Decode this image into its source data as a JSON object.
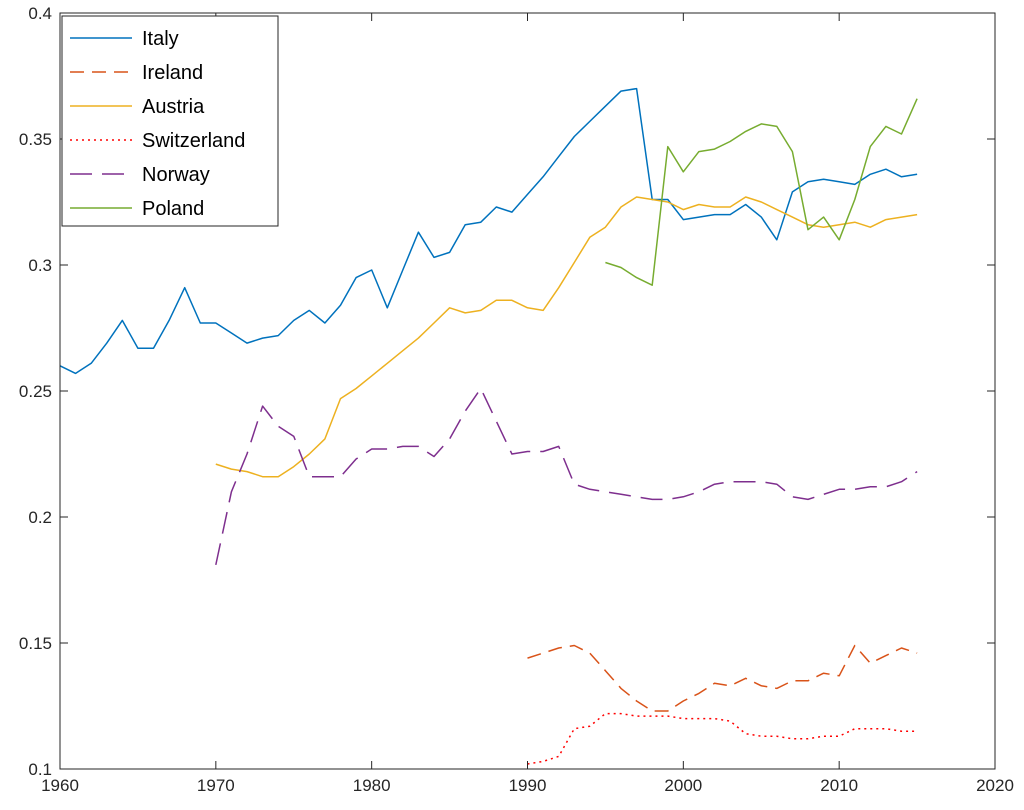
{
  "chart_data": {
    "type": "line",
    "title": "",
    "xlabel": "",
    "ylabel": "",
    "xlim": [
      1960,
      2020
    ],
    "ylim": [
      0.1,
      0.4
    ],
    "x_ticks": [
      "1960",
      "1970",
      "1980",
      "1990",
      "2000",
      "2010",
      "2020"
    ],
    "y_ticks": [
      "0.1",
      "0.15",
      "0.2",
      "0.25",
      "0.3",
      "0.35",
      "0.4"
    ],
    "grid": false,
    "legend_position": "top-left",
    "series": [
      {
        "name": "Italy",
        "color": "#0072BD",
        "style": "solid",
        "x": [
          1960,
          1961,
          1962,
          1963,
          1964,
          1965,
          1966,
          1967,
          1968,
          1969,
          1970,
          1971,
          1972,
          1973,
          1974,
          1975,
          1976,
          1977,
          1978,
          1979,
          1980,
          1981,
          1982,
          1983,
          1984,
          1985,
          1986,
          1987,
          1988,
          1989,
          1990,
          1991,
          1992,
          1993,
          1994,
          1995,
          1996,
          1997,
          1998,
          1999,
          2000,
          2001,
          2002,
          2003,
          2004,
          2005,
          2006,
          2007,
          2008,
          2009,
          2010,
          2011,
          2012,
          2013,
          2014,
          2015
        ],
        "y": [
          0.26,
          0.257,
          0.261,
          0.269,
          0.278,
          0.267,
          0.267,
          0.278,
          0.291,
          0.277,
          0.277,
          0.273,
          0.269,
          0.271,
          0.272,
          0.278,
          0.282,
          0.277,
          0.284,
          0.295,
          0.298,
          0.283,
          0.298,
          0.313,
          0.303,
          0.305,
          0.316,
          0.317,
          0.323,
          0.321,
          0.328,
          0.335,
          0.343,
          0.351,
          0.357,
          0.363,
          0.369,
          0.37,
          0.326,
          0.326,
          0.318,
          0.319,
          0.32,
          0.32,
          0.324,
          0.319,
          0.31,
          0.329,
          0.333,
          0.334,
          0.333,
          0.332,
          0.336,
          0.338,
          0.335,
          0.336
        ]
      },
      {
        "name": "Ireland",
        "color": "#D95319",
        "style": "dashed",
        "x": [
          1990,
          1991,
          1992,
          1993,
          1994,
          1995,
          1996,
          1997,
          1998,
          1999,
          2000,
          2001,
          2002,
          2003,
          2004,
          2005,
          2006,
          2007,
          2008,
          2009,
          2010,
          2011,
          2012,
          2013,
          2014,
          2015
        ],
        "y": [
          0.144,
          0.146,
          0.148,
          0.149,
          0.146,
          0.139,
          0.132,
          0.127,
          0.123,
          0.123,
          0.127,
          0.13,
          0.134,
          0.133,
          0.136,
          0.133,
          0.132,
          0.135,
          0.135,
          0.138,
          0.137,
          0.149,
          0.142,
          0.145,
          0.148,
          0.146
        ]
      },
      {
        "name": "Austria",
        "color": "#EDB120",
        "style": "solid",
        "x": [
          1970,
          1971,
          1972,
          1973,
          1974,
          1975,
          1976,
          1977,
          1978,
          1979,
          1980,
          1981,
          1982,
          1983,
          1984,
          1985,
          1986,
          1987,
          1988,
          1989,
          1990,
          1991,
          1992,
          1993,
          1994,
          1995,
          1996,
          1997,
          1998,
          1999,
          2000,
          2001,
          2002,
          2003,
          2004,
          2005,
          2006,
          2007,
          2008,
          2009,
          2010,
          2011,
          2012,
          2013,
          2014,
          2015
        ],
        "y": [
          0.221,
          0.219,
          0.218,
          0.216,
          0.216,
          0.22,
          0.225,
          0.231,
          0.247,
          0.251,
          0.256,
          0.261,
          0.266,
          0.271,
          0.277,
          0.283,
          0.281,
          0.282,
          0.286,
          0.286,
          0.283,
          0.282,
          0.291,
          0.301,
          0.311,
          0.315,
          0.323,
          0.327,
          0.326,
          0.325,
          0.322,
          0.324,
          0.323,
          0.323,
          0.327,
          0.325,
          0.322,
          0.319,
          0.316,
          0.315,
          0.316,
          0.317,
          0.315,
          0.318,
          0.319,
          0.32
        ]
      },
      {
        "name": "Switzerland",
        "color": "#FF0000",
        "style": "dotted",
        "x": [
          1990,
          1991,
          1992,
          1993,
          1994,
          1995,
          1996,
          1997,
          1998,
          1999,
          2000,
          2001,
          2002,
          2003,
          2004,
          2005,
          2006,
          2007,
          2008,
          2009,
          2010,
          2011,
          2012,
          2013,
          2014,
          2015
        ],
        "y": [
          0.102,
          0.103,
          0.105,
          0.116,
          0.117,
          0.122,
          0.122,
          0.121,
          0.121,
          0.121,
          0.12,
          0.12,
          0.12,
          0.119,
          0.114,
          0.113,
          0.113,
          0.112,
          0.112,
          0.113,
          0.113,
          0.116,
          0.116,
          0.116,
          0.115,
          0.115
        ]
      },
      {
        "name": "Norway",
        "color": "#7E2F8E",
        "style": "longdash",
        "x": [
          1970,
          1971,
          1972,
          1973,
          1974,
          1975,
          1976,
          1977,
          1978,
          1979,
          1980,
          1981,
          1982,
          1983,
          1984,
          1985,
          1986,
          1987,
          1988,
          1989,
          1990,
          1991,
          1992,
          1993,
          1994,
          1995,
          1996,
          1997,
          1998,
          1999,
          2000,
          2001,
          2002,
          2003,
          2004,
          2005,
          2006,
          2007,
          2008,
          2009,
          2010,
          2011,
          2012,
          2013,
          2014,
          2015
        ],
        "y": [
          0.181,
          0.21,
          0.225,
          0.244,
          0.236,
          0.232,
          0.216,
          0.216,
          0.216,
          0.223,
          0.227,
          0.227,
          0.228,
          0.228,
          0.224,
          0.231,
          0.242,
          0.251,
          0.238,
          0.225,
          0.226,
          0.226,
          0.228,
          0.213,
          0.211,
          0.21,
          0.209,
          0.208,
          0.207,
          0.207,
          0.208,
          0.21,
          0.213,
          0.214,
          0.214,
          0.214,
          0.213,
          0.208,
          0.207,
          0.209,
          0.211,
          0.211,
          0.212,
          0.212,
          0.214,
          0.218
        ]
      },
      {
        "name": "Poland",
        "color": "#77AC30",
        "style": "solid",
        "x": [
          1995,
          1996,
          1997,
          1998,
          1999,
          2000,
          2001,
          2002,
          2003,
          2004,
          2005,
          2006,
          2007,
          2008,
          2009,
          2010,
          2011,
          2012,
          2013,
          2014,
          2015
        ],
        "y": [
          0.301,
          0.299,
          0.295,
          0.292,
          0.347,
          0.337,
          0.345,
          0.346,
          0.349,
          0.353,
          0.356,
          0.355,
          0.345,
          0.314,
          0.319,
          0.31,
          0.326,
          0.347,
          0.355,
          0.352,
          0.366
        ]
      }
    ]
  }
}
